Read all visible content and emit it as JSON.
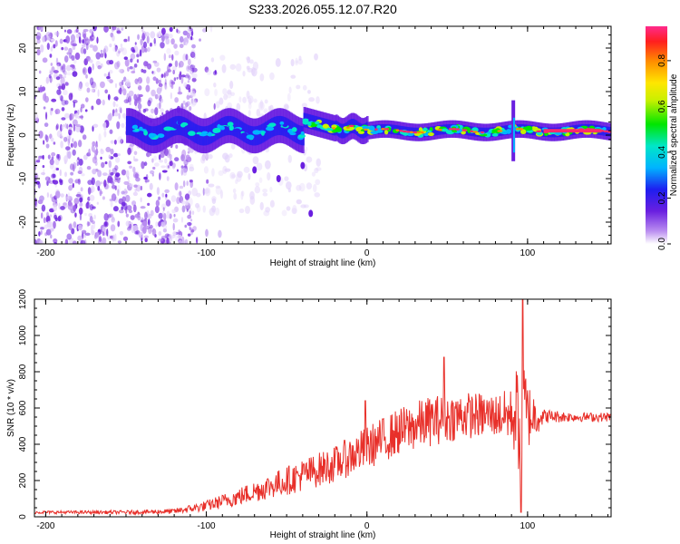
{
  "title": "S233.2026.055.12.07.R20",
  "colors": {
    "snr_line": "#e8302a",
    "ridge": "#ff2a6e",
    "background": "#ffffff"
  },
  "chart_data": [
    {
      "type": "heatmap",
      "name": "spectrogram",
      "xlabel": "Height of straight line (km)",
      "ylabel": "Frequency (Hz)",
      "xlim": [
        -207,
        152
      ],
      "ylim": [
        -25,
        25
      ],
      "xticks": [
        -200,
        -100,
        0,
        100
      ],
      "yticks": [
        -20,
        -10,
        0,
        10,
        20
      ],
      "colorbar": {
        "label": "Normalized spectral amplitude",
        "range": [
          0,
          0.95
        ],
        "ticks": [
          0.0,
          0.2,
          0.4,
          0.6,
          0.8
        ]
      },
      "features": [
        {
          "description": "central ridge near 0 Hz",
          "x_range": [
            -150,
            152
          ],
          "frequency_hz": 1,
          "peak_amplitude": 0.9
        },
        {
          "description": "scattered noise",
          "x_range": [
            -207,
            -110
          ],
          "frequency_hz": [
            -25,
            25
          ]
        },
        {
          "description": "spike",
          "x": 92,
          "frequency_hz": [
            -5,
            5
          ]
        }
      ]
    },
    {
      "type": "line",
      "name": "snr",
      "xlabel": "Height of straight line (km)",
      "ylabel": "SNR (10 * v/v)",
      "xlim": [
        -207,
        152
      ],
      "ylim": [
        0,
        1200
      ],
      "xticks": [
        -200,
        -100,
        0,
        100
      ],
      "yticks": [
        0,
        200,
        400,
        600,
        800,
        1000,
        1200
      ],
      "series": [
        {
          "name": "SNR",
          "envelope_x": [
            -207,
            -150,
            -120,
            -100,
            -80,
            -60,
            -40,
            -20,
            0,
            20,
            40,
            60,
            80,
            90,
            95,
            97,
            100,
            110,
            130,
            152
          ],
          "envelope_y": [
            25,
            25,
            30,
            60,
            110,
            170,
            230,
            290,
            380,
            470,
            530,
            560,
            560,
            560,
            560,
            560,
            560,
            555,
            550,
            550
          ],
          "noise_amplitude": [
            8,
            10,
            15,
            30,
            50,
            70,
            90,
            100,
            120,
            130,
            140,
            130,
            120,
            150,
            350,
            400,
            200,
            40,
            25,
            25
          ],
          "peaks": [
            {
              "x": 97,
              "y": 1200
            },
            {
              "x": 96,
              "y": 25
            },
            {
              "x": 48,
              "y": 880
            },
            {
              "x": -1,
              "y": 640
            }
          ]
        }
      ]
    }
  ]
}
